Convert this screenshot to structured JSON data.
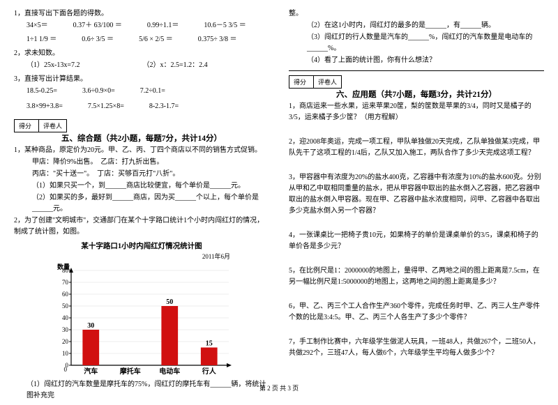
{
  "left": {
    "q1": "1，直接写出下面各题的得数。",
    "q1r1": [
      "34×5＝",
      "0.37＋ 63/100 ＝",
      "0.99÷1.1＝",
      "10.6－5 3/5 ＝"
    ],
    "q1r2": [
      "1÷1 1/9 ＝",
      "0.6÷ 3/5 ＝",
      "5/6 × 2/5 ＝",
      "0.375÷ 3/8 ＝"
    ],
    "q2": "2，求未知数。",
    "q2a": "（1）25x-13x=7.2",
    "q2b": "（2）x：2.5=1.2：2.4",
    "q3": "3，直接写出计算结果。",
    "q3r1": [
      "18.5-0.25=",
      "3.6÷0.9×0=",
      "7.2÷0.1="
    ],
    "q3r2": [
      "3.8×99+3.8=",
      "7.5×1.25×8=",
      "8-2.3-1.7="
    ],
    "score_l": [
      "得分",
      "评卷人"
    ],
    "sec5": "五、综合题（共2小题，每题7分，共计14分）",
    "s5_1": "1，某种商品，原定价为20元。甲、乙、丙、丁四个商店以不同的销售方式促销。",
    "s5_1a": "甲店：降价9%出售。　乙店：打九折出售。",
    "s5_1b": "丙店：\"买十送一\"。　丁店：买够百元打\"八折\"。",
    "s5_1c": "（1）如果只买一个，到______商店比较便宜，每个单价是______元。",
    "s5_1d": "（2）如果买的多，最好到______商店，因为买______个以上，每个单价是______元。",
    "s5_2": "2，为了创建\"文明城市\"，交通部门在某个十字路口统计1个小时内闯红灯的情况，制成了统计图，如图。",
    "chart_title": "某十字路口1小时内闯红灯情况统计图",
    "chart_date": "2011年6月",
    "chart": {
      "ylabel": "数量",
      "categories": [
        "汽车",
        "摩托车",
        "电动车",
        "行人"
      ],
      "values": [
        30,
        null,
        50,
        15
      ],
      "labels": [
        "30",
        "",
        "50",
        "15"
      ],
      "ymax": 80,
      "ystep": 10,
      "bar_color": "#d11010",
      "axis_color": "#000000",
      "grid_color": "#d9d9d9"
    },
    "s5_2a": "（1）闯红灯的汽车数量是摩托车的75%，闯红灯的摩托车有______辆，将统计图补充完"
  },
  "right": {
    "top0": "整。",
    "top1": "（2）在这1小时内，闯红灯的最多的是______，有______辆。",
    "top2": "（3）闯红灯的行人数量是汽车的______%，闯红灯的汽车数量是电动车的______%。",
    "top3": "（4）看了上面的统计图，你有什么想法？",
    "score_l": [
      "得分",
      "评卷人"
    ],
    "sec6": "六、应用题（共7小题，每题3分，共计21分）",
    "q1": "1，商店运来一些水果，运来苹果20筐，梨的筐数是苹果的3/4，同时又是橘子的3/5，运来橘子多少筐？（用方程解）",
    "q2": "2，迎2008年奥运，完成一项工程，甲队单独做20天完成，乙队单独做某3完成，甲队先干了这项工程的1/4后，乙队又加入施工，两队合作了多少天完成这项工程？",
    "q3": "3，甲容器中有浓度为20%的盐水400克，乙容器中有浓度为10%的盐水600克。分别从甲和乙中取相同重量的盐水，把从甲容器中取出的盐水倒入乙容器，把乙容器中取出的盐水倒入甲容器。现在甲、乙容器中盐水浓度相同，问甲、乙容器中各取出多少克盐水倒入另一个容器？",
    "q4": "4，一张课桌比一把椅子贵10元，如果椅子的单价是课桌单价的3/5，课桌和椅子的单价各是多少元？",
    "q5": "5，在比例尺是1：2000000的地图上，量得甲、乙两地之间的图上距离是7.5cm，在另一幅比例尺是1:5000000的地图上，这两地之间的图上距离是多少？",
    "q6": "6，甲、乙、丙三个工人合作生产360个零件，完成任务时甲、乙、丙三人生产零件个数的比是3:4:5。甲、乙、丙三个人各生产了多少个零件？",
    "q7": "7，手工制作比赛中，六年级学生做泥人玩具，一班48人，共做267个，二班50人，共做292个，三班47人，每人做6个，六年级学生平均每人做多少个？"
  },
  "footer": "第 2 页 共 3 页"
}
